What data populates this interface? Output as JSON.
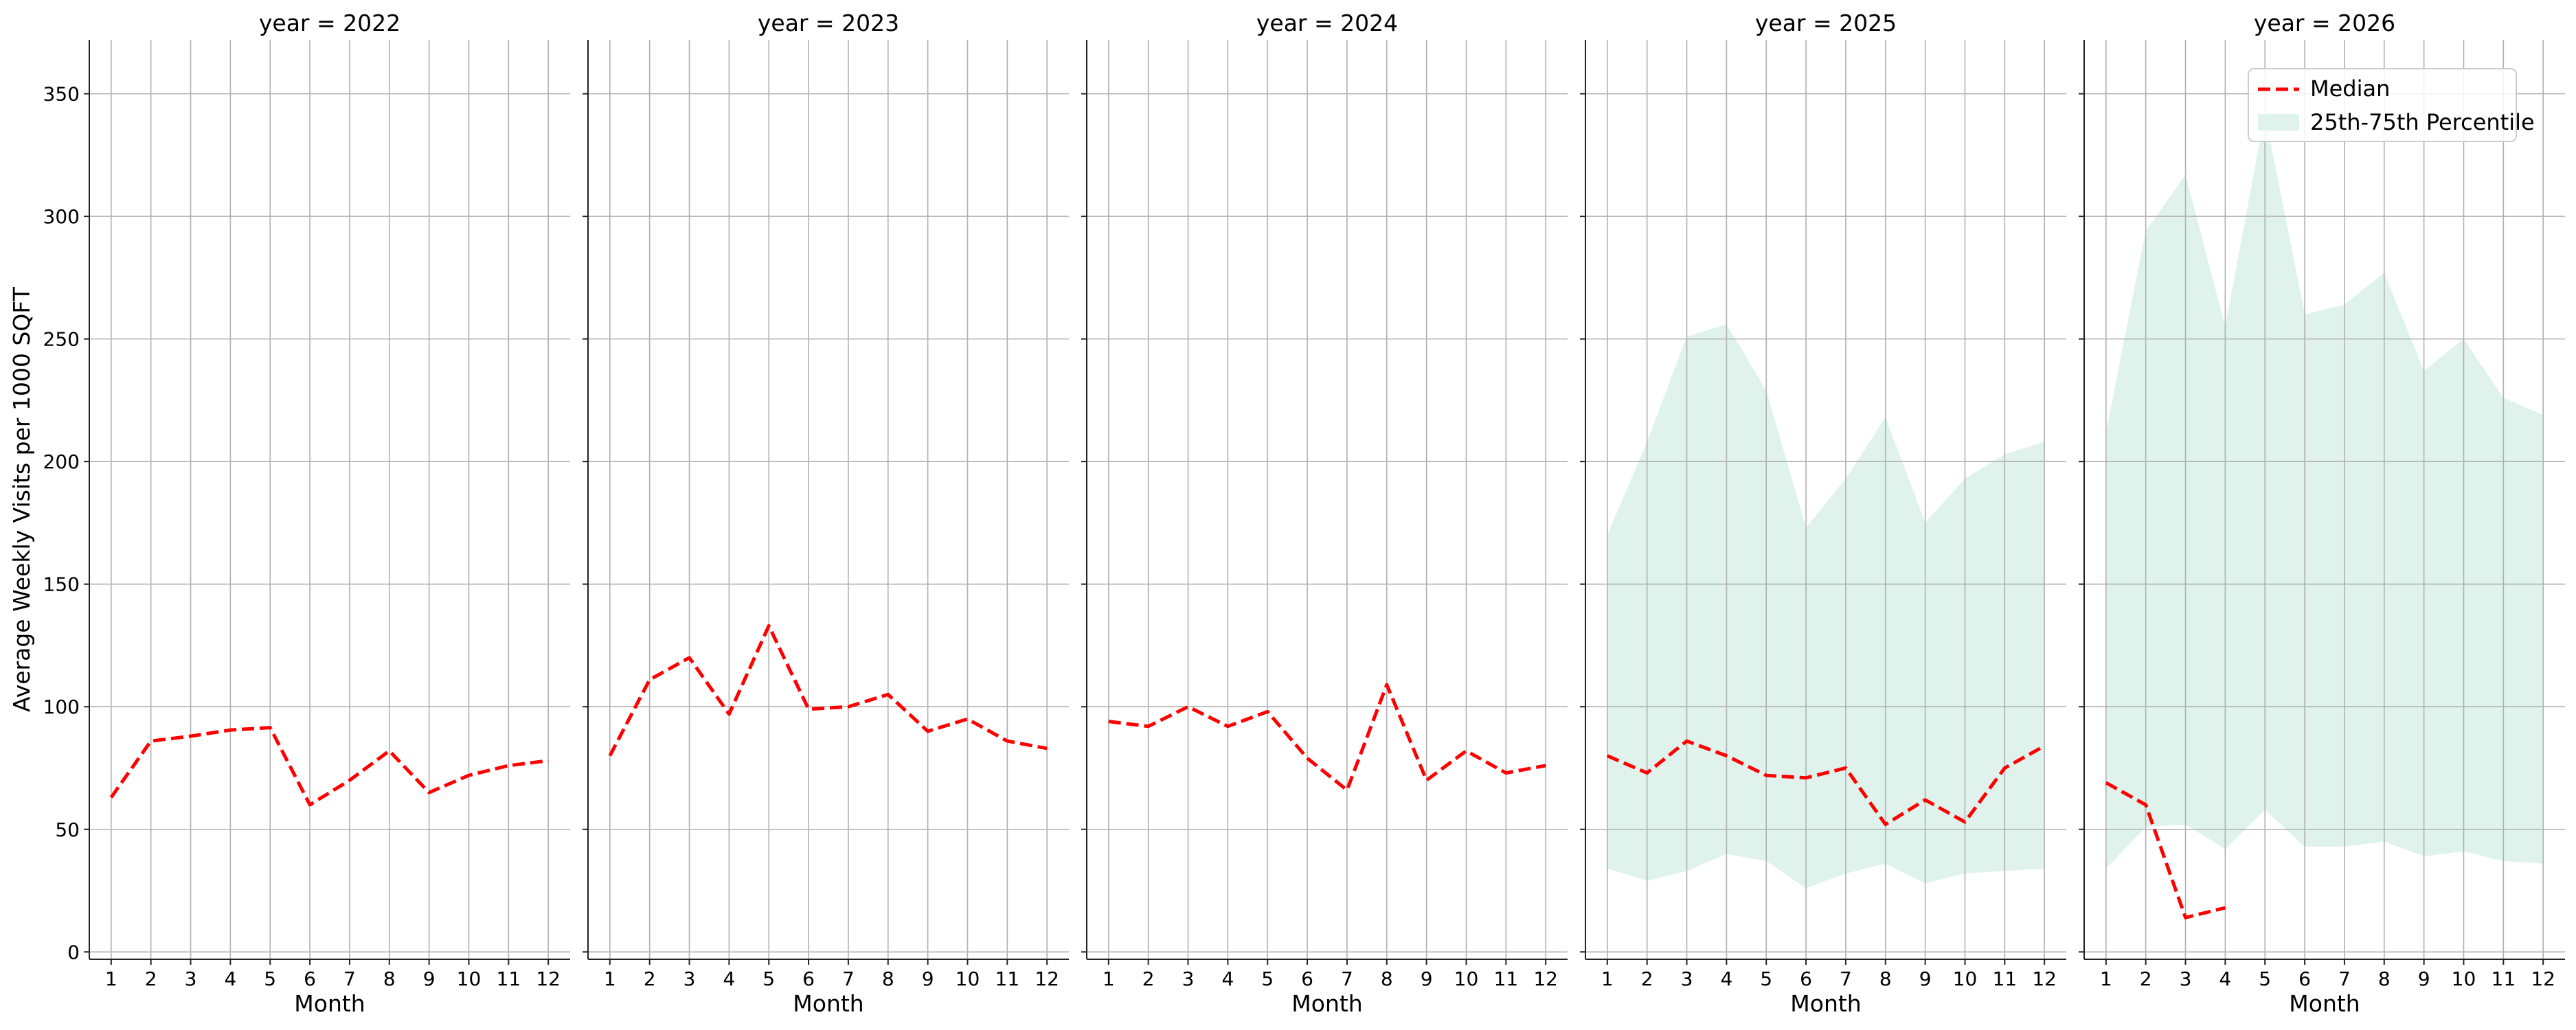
{
  "chart_data": {
    "type": "line",
    "ylabel": "Average Weekly Visits per 1000 SQFT",
    "xlabel": "Month",
    "ylim": [
      -3,
      372
    ],
    "xlim": [
      0.45,
      12.55
    ],
    "y_ticks": [
      0,
      50,
      100,
      150,
      200,
      250,
      300,
      350
    ],
    "x_ticks": [
      1,
      2,
      3,
      4,
      5,
      6,
      7,
      8,
      9,
      10,
      11,
      12
    ],
    "grid": true,
    "legend": {
      "placement": "top-right",
      "entries": [
        {
          "label": "Median",
          "style": "dashed-line",
          "color": "#ff0000"
        },
        {
          "label": "25th-75th Percentile",
          "style": "band",
          "color": "#dff2ec"
        }
      ]
    },
    "colors": {
      "median": "#ff0000",
      "band": "#dff2ec",
      "grid": "#b0b0b0"
    },
    "facets": [
      {
        "title": "year = 2022",
        "median": {
          "x": [
            1,
            2,
            3,
            4,
            5,
            6,
            7,
            8,
            9,
            10,
            11,
            12
          ],
          "y": [
            63,
            86,
            88,
            90.5,
            91.5,
            60,
            70,
            82,
            65,
            72,
            76,
            78
          ]
        },
        "band": null
      },
      {
        "title": "year = 2023",
        "median": {
          "x": [
            1,
            2,
            3,
            4,
            5,
            6,
            7,
            8,
            9,
            10,
            11,
            12
          ],
          "y": [
            80,
            111,
            120,
            97,
            133,
            99,
            100,
            105,
            90,
            95,
            86,
            83
          ]
        },
        "band": null
      },
      {
        "title": "year = 2024",
        "median": {
          "x": [
            1,
            2,
            3,
            4,
            5,
            6,
            7,
            8,
            9,
            10,
            11,
            12
          ],
          "y": [
            94,
            92,
            100,
            92,
            98,
            79,
            66,
            109,
            70,
            82,
            73,
            76
          ]
        },
        "band": null
      },
      {
        "title": "year = 2025",
        "median": {
          "x": [
            1,
            2,
            3,
            4,
            5,
            6,
            7,
            8,
            9,
            10,
            11,
            12
          ],
          "y": [
            80,
            73,
            86,
            80,
            72,
            71,
            75,
            52,
            62,
            53,
            75,
            84
          ]
        },
        "band": {
          "x": [
            1,
            2,
            3,
            4,
            5,
            6,
            7,
            8,
            9,
            10,
            11,
            12
          ],
          "lower": [
            34,
            29,
            33,
            40,
            37,
            26,
            32,
            36,
            28,
            32,
            33,
            34
          ],
          "upper": [
            170,
            208,
            251,
            256,
            229,
            173,
            193,
            218,
            175,
            193,
            203,
            208
          ]
        }
      },
      {
        "title": "year = 2026",
        "median": {
          "x": [
            1,
            2,
            3,
            4
          ],
          "y": [
            69,
            60,
            14,
            18
          ]
        },
        "band": {
          "x": [
            1,
            2,
            3,
            4,
            5,
            6,
            7,
            8,
            9,
            10,
            11,
            12
          ],
          "lower": [
            34,
            51,
            52,
            42,
            58,
            43,
            43,
            45,
            39,
            41,
            37,
            36
          ],
          "upper": [
            212,
            294,
            317,
            255,
            342,
            260,
            264,
            277,
            237,
            250,
            226,
            219
          ]
        }
      }
    ]
  }
}
